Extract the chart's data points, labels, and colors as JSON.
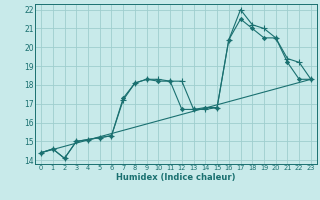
{
  "xlabel": "Humidex (Indice chaleur)",
  "bg_color": "#c8eaea",
  "grid_color": "#9fcece",
  "line_color": "#1a7070",
  "xlim": [
    -0.5,
    23.5
  ],
  "ylim": [
    13.8,
    22.3
  ],
  "yticks": [
    14,
    15,
    16,
    17,
    18,
    19,
    20,
    21,
    22
  ],
  "xticks": [
    0,
    1,
    2,
    3,
    4,
    5,
    6,
    7,
    8,
    9,
    10,
    11,
    12,
    13,
    14,
    15,
    16,
    17,
    18,
    19,
    20,
    21,
    22,
    23
  ],
  "line1_x": [
    0,
    1,
    2,
    3,
    4,
    5,
    6,
    7,
    8,
    9,
    10,
    11,
    12,
    13,
    14,
    15,
    16,
    17,
    18,
    19,
    20,
    21,
    22,
    23
  ],
  "line1_y": [
    14.4,
    14.6,
    14.1,
    15.0,
    15.1,
    15.2,
    15.3,
    17.2,
    18.1,
    18.3,
    18.3,
    18.2,
    18.2,
    16.7,
    16.7,
    16.8,
    20.4,
    22.0,
    21.2,
    21.0,
    20.5,
    19.4,
    19.2,
    18.3
  ],
  "line2_x": [
    0,
    1,
    2,
    3,
    4,
    5,
    6,
    7,
    8,
    9,
    10,
    11,
    12,
    13,
    14,
    15,
    16,
    17,
    18,
    19,
    20,
    21,
    22,
    23
  ],
  "line2_y": [
    14.4,
    14.6,
    14.1,
    15.0,
    15.1,
    15.2,
    15.3,
    17.3,
    18.1,
    18.3,
    18.2,
    18.2,
    16.7,
    16.7,
    16.8,
    16.8,
    20.4,
    21.5,
    21.0,
    20.5,
    20.5,
    19.2,
    18.3,
    18.3
  ],
  "line3_x": [
    0,
    23
  ],
  "line3_y": [
    14.4,
    18.3
  ]
}
